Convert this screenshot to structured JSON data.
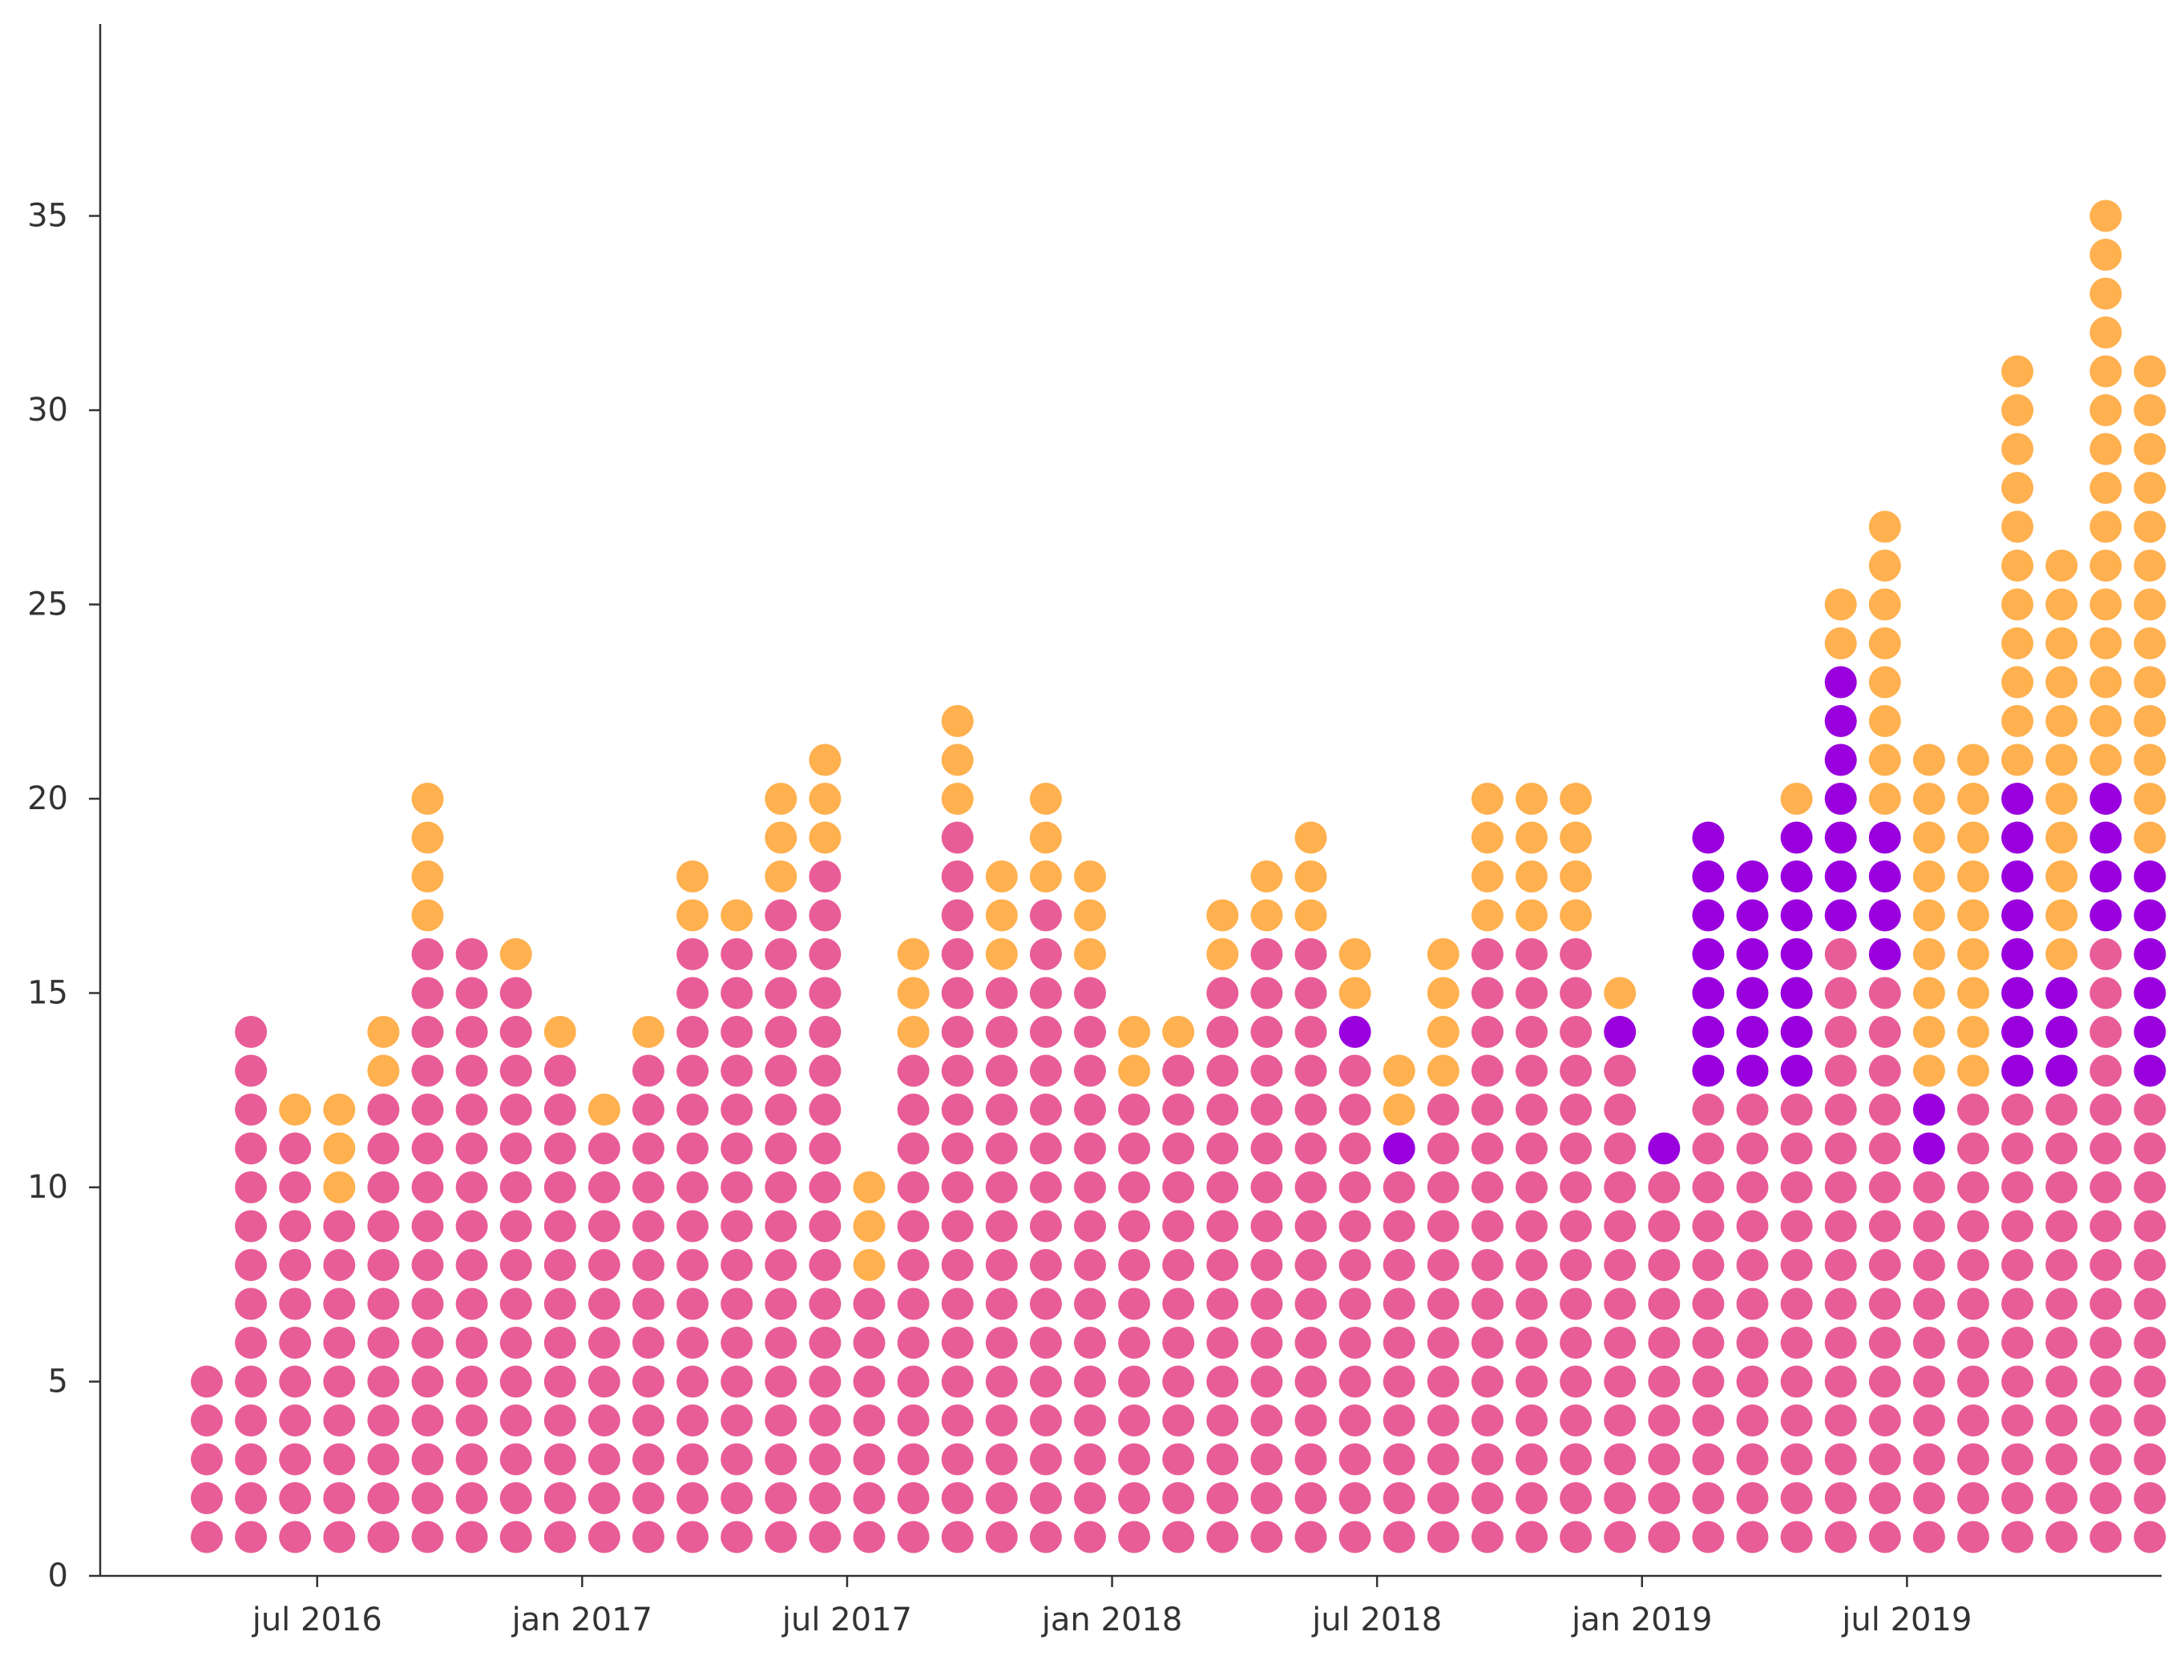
{
  "chart_data": {
    "type": "scatter",
    "title": "",
    "xlabel": "",
    "ylabel": "",
    "ylim": [
      0,
      40
    ],
    "y_ticks": [
      0,
      5,
      10,
      15,
      20,
      25,
      30,
      35
    ],
    "x_ticks": [
      "jul 2016",
      "jan 2017",
      "jul 2017",
      "jan 2018",
      "jul 2018",
      "jan 2019",
      "jul 2019"
    ],
    "x_tick_months": [
      "2016-07",
      "2017-01",
      "2017-07",
      "2018-01",
      "2018-07",
      "2019-01",
      "2019-07"
    ],
    "categories": [
      "2016-04",
      "2016-05",
      "2016-06",
      "2016-07",
      "2016-08",
      "2016-09",
      "2016-10",
      "2016-11",
      "2016-12",
      "2017-01",
      "2017-02",
      "2017-03",
      "2017-04",
      "2017-05",
      "2017-06",
      "2017-07",
      "2017-08",
      "2017-09",
      "2017-10",
      "2017-11",
      "2017-12",
      "2018-01",
      "2018-02",
      "2018-03",
      "2018-04",
      "2018-05",
      "2018-06",
      "2018-07",
      "2018-08",
      "2018-09",
      "2018-10",
      "2018-11",
      "2018-12",
      "2019-01",
      "2019-02",
      "2019-03",
      "2019-04",
      "2019-05",
      "2019-06",
      "2019-07",
      "2019-08",
      "2019-09",
      "2019-10",
      "2019-11",
      "2019-12"
    ],
    "colors": {
      "pink": "#E85D98",
      "purple": "#9900DD",
      "orange": "#FFB04F"
    },
    "series": [
      {
        "color": "pink",
        "values": [
          5,
          14,
          11,
          9,
          12,
          16,
          16,
          15,
          13,
          11,
          13,
          16,
          16,
          17,
          18,
          7,
          13,
          19,
          15,
          17,
          15,
          12,
          13,
          15,
          16,
          16,
          13,
          10,
          12,
          16,
          16,
          16,
          13,
          10,
          12,
          12,
          12,
          16,
          15,
          10,
          12,
          12,
          12,
          16,
          12
        ]
      },
      {
        "color": "purple",
        "values": [
          0,
          0,
          0,
          0,
          0,
          0,
          0,
          0,
          0,
          0,
          0,
          0,
          0,
          0,
          0,
          0,
          0,
          0,
          0,
          0,
          0,
          0,
          0,
          0,
          0,
          0,
          1,
          1,
          0,
          0,
          0,
          0,
          1,
          1,
          7,
          6,
          7,
          7,
          4,
          2,
          0,
          8,
          3,
          4,
          6
        ]
      },
      {
        "color": "orange",
        "values": [
          0,
          0,
          1,
          3,
          2,
          4,
          0,
          1,
          1,
          1,
          1,
          2,
          1,
          3,
          3,
          3,
          3,
          3,
          3,
          3,
          3,
          2,
          1,
          2,
          2,
          3,
          2,
          2,
          4,
          4,
          4,
          4,
          1,
          0,
          0,
          0,
          1,
          2,
          8,
          9,
          9,
          11,
          11,
          15,
          13
        ]
      }
    ]
  }
}
